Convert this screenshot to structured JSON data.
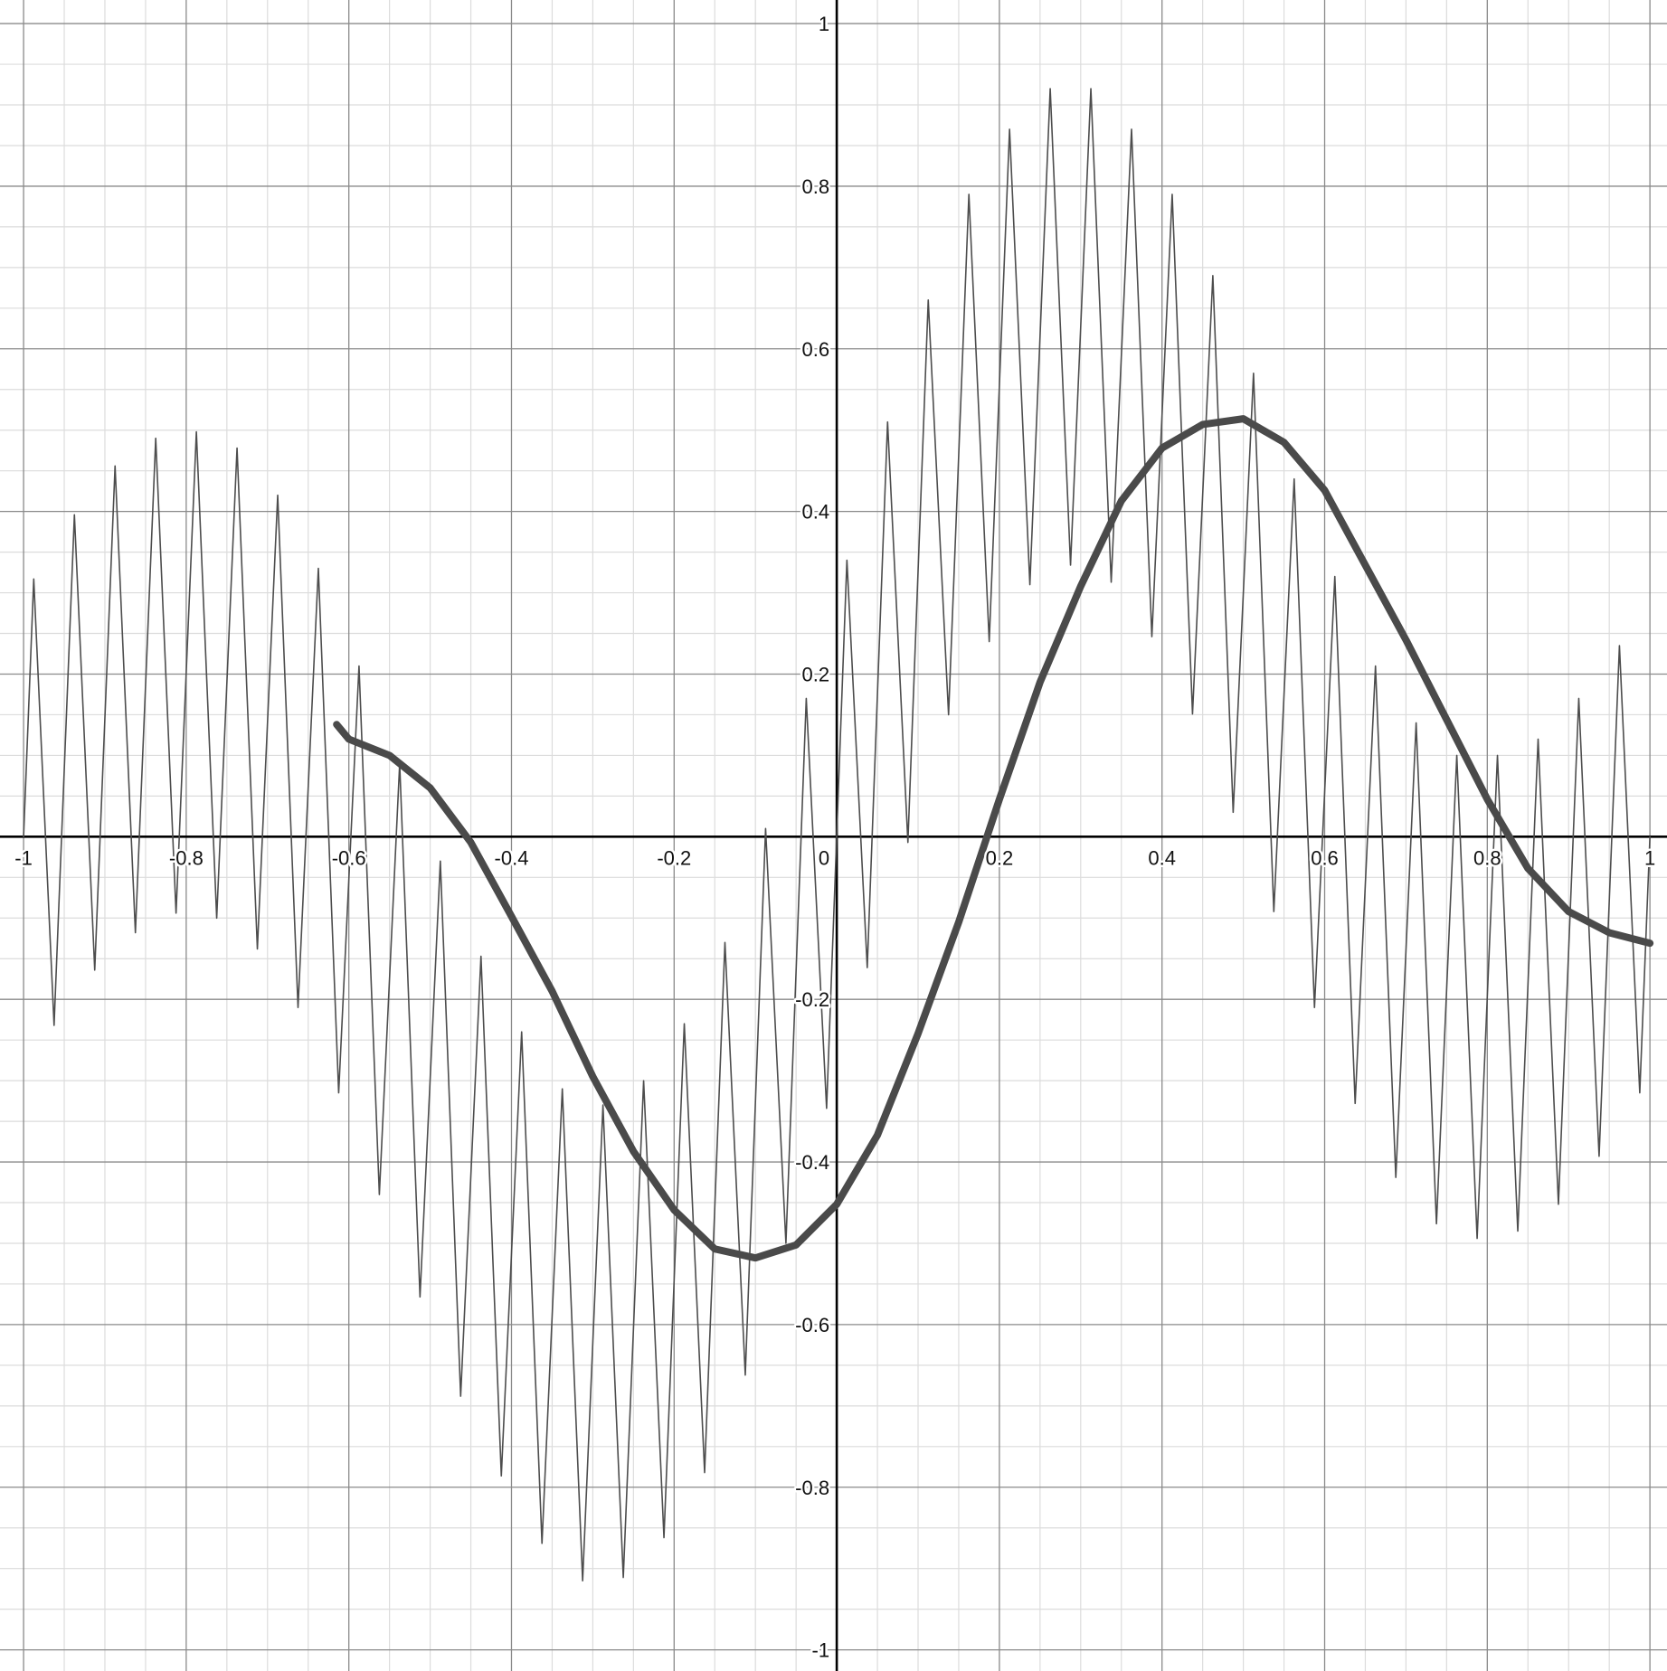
{
  "chart_data": {
    "type": "line",
    "xlim": [
      -1.029,
      1.021
    ],
    "ylim": [
      -1.026,
      1.029
    ],
    "xticks": [
      -1,
      -0.8,
      -0.6,
      -0.4,
      -0.2,
      0,
      0.2,
      0.4,
      0.6,
      0.8,
      1
    ],
    "yticks": [
      -1,
      -0.8,
      -0.6,
      -0.4,
      -0.2,
      0.2,
      0.4,
      0.6,
      0.8,
      1
    ],
    "xminorticks": [
      -0.95,
      -0.9,
      -0.85,
      -0.75,
      -0.7,
      -0.65,
      -0.55,
      -0.5,
      -0.45,
      -0.35,
      -0.3,
      -0.25,
      -0.15,
      -0.1,
      -0.05,
      0.05,
      0.1,
      0.15,
      0.25,
      0.3,
      0.35,
      0.45,
      0.5,
      0.55,
      0.65,
      0.7,
      0.75,
      0.85,
      0.9,
      0.95
    ],
    "yminorticks": [
      -0.95,
      -0.9,
      -0.85,
      -0.75,
      -0.7,
      -0.65,
      -0.55,
      -0.5,
      -0.45,
      -0.35,
      -0.3,
      -0.25,
      -0.15,
      -0.1,
      -0.05,
      0.05,
      0.1,
      0.15,
      0.25,
      0.3,
      0.35,
      0.45,
      0.5,
      0.55,
      0.65,
      0.7,
      0.75,
      0.85,
      0.9,
      0.95
    ],
    "grid": true,
    "series": [
      {
        "color": "#4d4d4d",
        "width": 1.6,
        "x": [
          -1,
          -0.9875,
          -0.9625,
          -0.9375,
          -0.9125,
          -0.8875,
          -0.8625,
          -0.8375,
          -0.8125,
          -0.7875,
          -0.7625,
          -0.7375,
          -0.7125,
          -0.6875,
          -0.6625,
          -0.6375,
          -0.6125,
          -0.5875,
          -0.5625,
          -0.5375,
          -0.5125,
          -0.4875,
          -0.4625,
          -0.4375,
          -0.4125,
          -0.3875,
          -0.3625,
          -0.3375,
          -0.3125,
          -0.2875,
          -0.2625,
          -0.2375,
          -0.2125,
          -0.1875,
          -0.1625,
          -0.1375,
          -0.1125,
          -0.0875,
          -0.0625,
          -0.0375,
          -0.0125,
          0.0125,
          0.0375,
          0.0625,
          0.0875,
          0.1125,
          0.1375,
          0.1625,
          0.1875,
          0.2125,
          0.2375,
          0.2625,
          0.2875,
          0.3125,
          0.3375,
          0.3625,
          0.3875,
          0.4125,
          0.4375,
          0.4625,
          0.4875,
          0.5125,
          0.5375,
          0.5625,
          0.5875,
          0.6125,
          0.6375,
          0.6625,
          0.6875,
          0.7125,
          0.7375,
          0.7625,
          0.7875,
          0.8125,
          0.8375,
          0.8625,
          0.8875,
          0.9125,
          0.9375,
          0.9625,
          0.9875,
          1
        ],
        "values": [
          0,
          0.317,
          -0.232,
          0.396,
          -0.164,
          0.456,
          -0.118,
          0.49,
          -0.094,
          0.498,
          -0.1,
          0.478,
          -0.138,
          0.42,
          -0.21,
          0.33,
          -0.315,
          0.21,
          -0.44,
          0.09,
          -0.566,
          -0.03,
          -0.688,
          -0.147,
          -0.786,
          -0.24,
          -0.869,
          -0.31,
          -0.915,
          -0.33,
          -0.911,
          -0.3,
          -0.862,
          -0.23,
          -0.782,
          -0.13,
          -0.662,
          0.01,
          -0.5,
          0.17,
          -0.334,
          0.34,
          -0.161,
          0.51,
          -0.007,
          0.66,
          0.15,
          0.79,
          0.24,
          0.87,
          0.31,
          0.92,
          0.334,
          0.92,
          0.313,
          0.87,
          0.246,
          0.79,
          0.151,
          0.69,
          0.03,
          0.57,
          -0.092,
          0.44,
          -0.21,
          0.32,
          -0.328,
          0.21,
          -0.419,
          0.14,
          -0.476,
          0.1,
          -0.494,
          0.1,
          -0.485,
          0.12,
          -0.452,
          0.17,
          -0.393,
          0.235,
          -0.315,
          0
        ]
      },
      {
        "color": "#4a4a4a",
        "width": 8,
        "x": [
          -0.615,
          -0.6,
          -0.55,
          -0.5,
          -0.45,
          -0.4,
          -0.35,
          -0.3,
          -0.25,
          -0.2,
          -0.15,
          -0.1,
          -0.05,
          0,
          0.05,
          0.1,
          0.15,
          0.2,
          0.25,
          0.3,
          0.35,
          0.4,
          0.45,
          0.5,
          0.55,
          0.6,
          0.65,
          0.7,
          0.75,
          0.8,
          0.85,
          0.9,
          0.95,
          1
        ],
        "values": [
          0.138,
          0.12,
          0.1,
          0.06,
          -0.007,
          -0.098,
          -0.19,
          -0.295,
          -0.387,
          -0.459,
          -0.507,
          -0.518,
          -0.502,
          -0.452,
          -0.367,
          -0.242,
          -0.105,
          0.046,
          0.19,
          0.308,
          0.413,
          0.478,
          0.507,
          0.514,
          0.485,
          0.426,
          0.334,
          0.242,
          0.144,
          0.046,
          -0.039,
          -0.092,
          -0.118,
          -0.131
        ]
      }
    ]
  }
}
